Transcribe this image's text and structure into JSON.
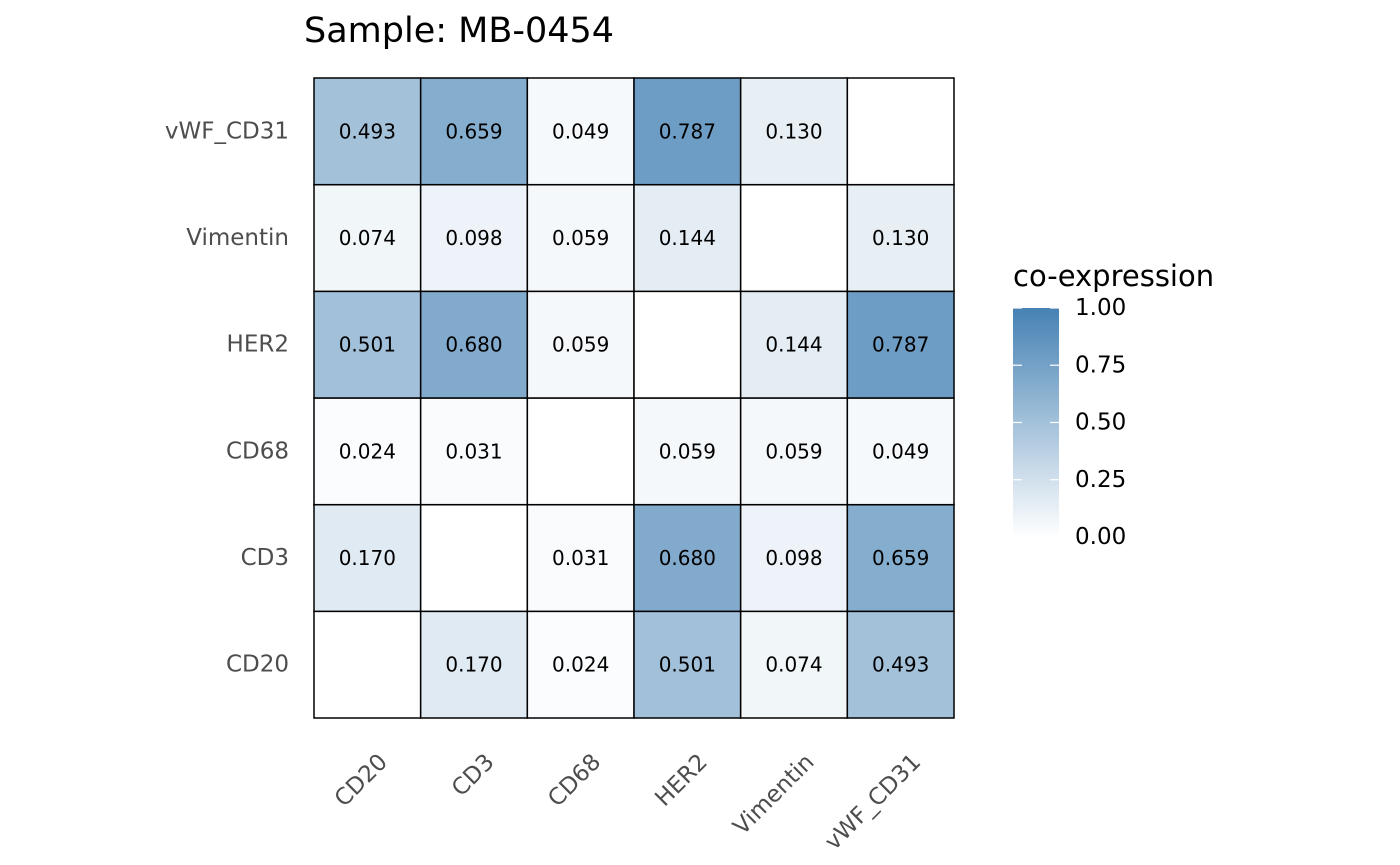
{
  "chart_data": {
    "type": "heatmap",
    "title": "Sample: MB-0454",
    "x_categories": [
      "CD20",
      "CD3",
      "CD68",
      "HER2",
      "Vimentin",
      "vWF_CD31"
    ],
    "y_categories": [
      "CD20",
      "CD3",
      "CD68",
      "HER2",
      "Vimentin",
      "vWF_CD31"
    ],
    "values": [
      [
        null,
        0.17,
        0.024,
        0.501,
        0.074,
        0.493
      ],
      [
        0.17,
        null,
        0.031,
        0.68,
        0.098,
        0.659
      ],
      [
        0.024,
        0.031,
        null,
        0.059,
        0.059,
        0.049
      ],
      [
        0.501,
        0.68,
        0.059,
        null,
        0.144,
        0.787
      ],
      [
        0.074,
        0.098,
        0.059,
        0.144,
        null,
        0.13
      ],
      [
        0.493,
        0.659,
        0.049,
        0.787,
        0.13,
        null
      ]
    ],
    "labels": [
      [
        "",
        "0.170",
        "0.024",
        "0.501",
        "0.074",
        "0.493"
      ],
      [
        "0.170",
        "",
        "0.031",
        "0.680",
        "0.098",
        "0.659"
      ],
      [
        "0.024",
        "0.031",
        "",
        "0.059",
        "0.059",
        "0.049"
      ],
      [
        "0.501",
        "0.680",
        "0.059",
        "",
        "0.144",
        "0.787"
      ],
      [
        "0.074",
        "0.098",
        "0.059",
        "0.144",
        "",
        "0.130"
      ],
      [
        "0.493",
        "0.659",
        "0.049",
        "0.787",
        "0.130",
        ""
      ]
    ],
    "legend": {
      "title": "co-expression",
      "ticks": [
        1.0,
        0.75,
        0.5,
        0.25,
        0.0
      ],
      "tick_labels": [
        "1.00",
        "0.75",
        "0.50",
        "0.25",
        "0.00"
      ],
      "range": [
        0,
        1
      ],
      "placement": "right"
    },
    "color_scale": {
      "low": "#ffffff",
      "high": "#4682b4"
    },
    "grid": false
  }
}
